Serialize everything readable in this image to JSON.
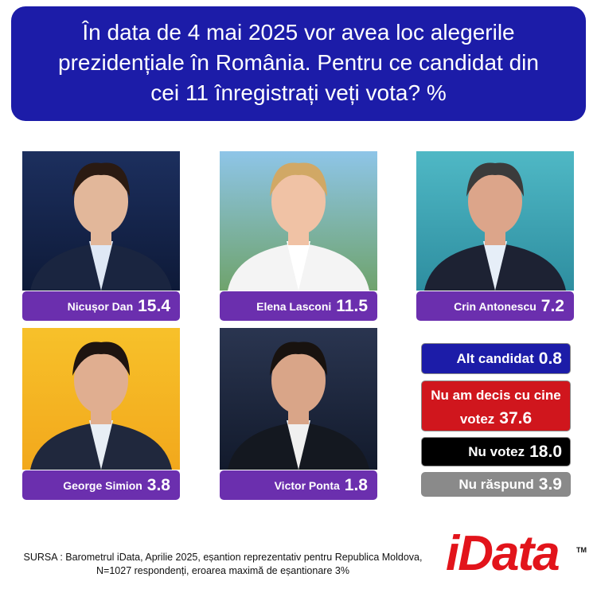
{
  "header": {
    "title": "În data de 4 mai 2025 vor avea loc alegerile prezidențiale în România. Pentru ce candidat din cei 11 înregistrați veți vota? %"
  },
  "candidates": [
    {
      "name": "Nicușor Dan",
      "value": "15.4"
    },
    {
      "name": "Elena Lasconi",
      "value": "11.5"
    },
    {
      "name": "Crin Antonescu",
      "value": "7.2"
    },
    {
      "name": "George Simion",
      "value": "3.8"
    },
    {
      "name": "Victor Ponta",
      "value": "1.8"
    }
  ],
  "other_answers": [
    {
      "label": "Alt candidat",
      "value": "0.8"
    },
    {
      "label": "Nu am decis cu cine votez",
      "value": "37.6"
    },
    {
      "label": "Nu votez",
      "value": "18.0"
    },
    {
      "label": "Nu răspund",
      "value": "3.9"
    }
  ],
  "footer": {
    "source": "SURSA : Barometrul iData, Aprilie 2025, eșantion reprezentativ pentru Republica Moldova, N=1027 respondenți, eroarea maximă de eșantionare 3%",
    "logo": "iData",
    "trademark": "TM"
  }
}
